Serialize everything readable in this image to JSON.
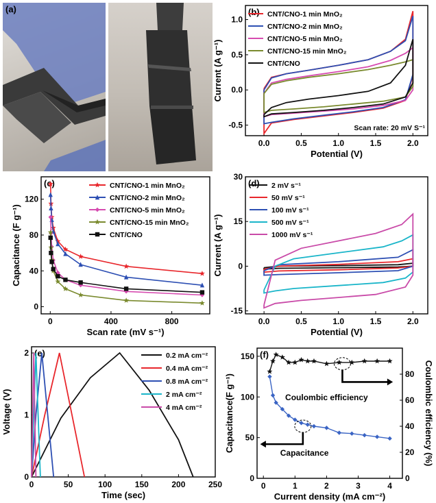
{
  "panel_a": {
    "label": "(a)"
  },
  "chart_data": [
    {
      "id": "b",
      "panel_label": "(b)",
      "type": "line",
      "xlabel": "Potential (V)",
      "ylabel": "Current (A g⁻¹)",
      "xlim": [
        -0.25,
        2.2
      ],
      "ylim": [
        -0.65,
        1.2
      ],
      "xticks": [
        0.0,
        0.5,
        1.0,
        1.5,
        2.0
      ],
      "yticks": [
        -0.5,
        0.0,
        0.5,
        1.0
      ],
      "xtick_labels": [
        "0.0",
        "0.5",
        "1.0",
        "1.5",
        "2.0"
      ],
      "ytick_labels": [
        "-0.5",
        "0.0",
        "0.5",
        "1.0"
      ],
      "annotation": "Scan rate: 20 mV S⁻¹",
      "legend_position": "top-left",
      "series": [
        {
          "name": "CNT/CNO-1 min MnO₂",
          "color": "#e8262b",
          "upper": [
            [
              0,
              0.02
            ],
            [
              0.1,
              0.18
            ],
            [
              0.3,
              0.23
            ],
            [
              0.6,
              0.28
            ],
            [
              1.0,
              0.35
            ],
            [
              1.4,
              0.43
            ],
            [
              1.7,
              0.55
            ],
            [
              1.9,
              0.72
            ],
            [
              2.0,
              1.12
            ]
          ],
          "lower": [
            [
              2.0,
              0.2
            ],
            [
              1.9,
              -0.15
            ],
            [
              1.6,
              -0.26
            ],
            [
              1.2,
              -0.32
            ],
            [
              0.8,
              -0.37
            ],
            [
              0.4,
              -0.42
            ],
            [
              0.1,
              -0.47
            ],
            [
              0.0,
              -0.62
            ]
          ]
        },
        {
          "name": "CNT/CNO-2 min MnO₂",
          "color": "#2d4fb3",
          "upper": [
            [
              0,
              0.0
            ],
            [
              0.1,
              0.17
            ],
            [
              0.3,
              0.23
            ],
            [
              0.6,
              0.28
            ],
            [
              1.0,
              0.35
            ],
            [
              1.4,
              0.43
            ],
            [
              1.7,
              0.55
            ],
            [
              1.9,
              0.7
            ],
            [
              2.0,
              1.05
            ]
          ],
          "lower": [
            [
              2.0,
              0.22
            ],
            [
              1.9,
              -0.14
            ],
            [
              1.6,
              -0.25
            ],
            [
              1.2,
              -0.31
            ],
            [
              0.8,
              -0.36
            ],
            [
              0.4,
              -0.41
            ],
            [
              0.1,
              -0.46
            ],
            [
              0.0,
              -0.48
            ]
          ]
        },
        {
          "name": "CNT/CNO-5 min MnO₂",
          "color": "#d64bb0",
          "upper": [
            [
              0,
              -0.05
            ],
            [
              0.1,
              0.1
            ],
            [
              0.3,
              0.15
            ],
            [
              0.6,
              0.2
            ],
            [
              1.0,
              0.26
            ],
            [
              1.4,
              0.33
            ],
            [
              1.7,
              0.42
            ],
            [
              1.9,
              0.52
            ],
            [
              2.0,
              0.6
            ]
          ],
          "lower": [
            [
              2.0,
              0.0
            ],
            [
              1.9,
              -0.15
            ],
            [
              1.6,
              -0.22
            ],
            [
              1.2,
              -0.27
            ],
            [
              0.8,
              -0.3
            ],
            [
              0.4,
              -0.33
            ],
            [
              0.1,
              -0.35
            ],
            [
              0.0,
              -0.38
            ]
          ]
        },
        {
          "name": "CNT/CNO-15 min MnO₂",
          "color": "#7a8a2e",
          "upper": [
            [
              0,
              -0.05
            ],
            [
              0.1,
              0.08
            ],
            [
              0.3,
              0.13
            ],
            [
              0.6,
              0.18
            ],
            [
              1.0,
              0.23
            ],
            [
              1.4,
              0.29
            ],
            [
              1.7,
              0.35
            ],
            [
              1.9,
              0.4
            ],
            [
              2.0,
              0.43
            ]
          ],
          "lower": [
            [
              2.0,
              0.05
            ],
            [
              1.9,
              -0.1
            ],
            [
              1.6,
              -0.16
            ],
            [
              1.2,
              -0.2
            ],
            [
              0.8,
              -0.24
            ],
            [
              0.4,
              -0.27
            ],
            [
              0.1,
              -0.29
            ],
            [
              0.0,
              -0.32
            ]
          ]
        },
        {
          "name": "CNT/CNO",
          "color": "#111111",
          "upper": [
            [
              0,
              -0.35
            ],
            [
              0.1,
              -0.25
            ],
            [
              0.3,
              -0.18
            ],
            [
              0.6,
              -0.13
            ],
            [
              1.0,
              -0.08
            ],
            [
              1.4,
              -0.02
            ],
            [
              1.7,
              0.1
            ],
            [
              1.9,
              0.35
            ],
            [
              2.0,
              0.72
            ]
          ],
          "lower": [
            [
              2.0,
              0.1
            ],
            [
              1.9,
              -0.1
            ],
            [
              1.6,
              -0.2
            ],
            [
              1.2,
              -0.25
            ],
            [
              0.8,
              -0.29
            ],
            [
              0.4,
              -0.32
            ],
            [
              0.1,
              -0.34
            ],
            [
              0.0,
              -0.38
            ]
          ]
        }
      ]
    },
    {
      "id": "c",
      "panel_label": "(c)",
      "type": "line",
      "xlabel": "Scan rate (mV s⁻¹)",
      "ylabel": "Capacitance (F g⁻¹)",
      "xlim": [
        -60,
        1050
      ],
      "ylim": [
        -8,
        145
      ],
      "xticks": [
        0,
        400,
        800
      ],
      "yticks": [
        0,
        40,
        80,
        120
      ],
      "xtick_labels": [
        "0",
        "400",
        "800"
      ],
      "ytick_labels": [
        "0",
        "40",
        "80",
        "120"
      ],
      "legend_position": "top-right",
      "x": [
        2,
        5,
        10,
        20,
        50,
        100,
        200,
        500,
        1000
      ],
      "series": [
        {
          "name": "CNT/CNO-1 min MnO₂",
          "color": "#e8262b",
          "marker": "star",
          "values": [
            137,
            115,
            100,
            88,
            73,
            64,
            56,
            45,
            37
          ]
        },
        {
          "name": "CNT/CNO-2 min MnO₂",
          "color": "#2d4fb3",
          "marker": "triangle",
          "values": [
            125,
            110,
            97,
            84,
            70,
            59,
            47,
            33,
            24
          ]
        },
        {
          "name": "CNT/CNO-5 min MnO₂",
          "color": "#d64bb0",
          "marker": "diamond",
          "values": [
            100,
            82,
            67,
            52,
            38,
            30,
            24,
            17,
            13
          ]
        },
        {
          "name": "CNT/CNO-15 min MnO₂",
          "color": "#7a8a2e",
          "marker": "star",
          "values": [
            83,
            66,
            52,
            40,
            28,
            20,
            13,
            7,
            4
          ]
        },
        {
          "name": "CNT/CNO",
          "color": "#111111",
          "marker": "square",
          "values": [
            77,
            60,
            50,
            42,
            34,
            30,
            27,
            20,
            16
          ]
        }
      ]
    },
    {
      "id": "d",
      "panel_label": "(d)",
      "type": "line",
      "xlabel": "Potential (V)",
      "ylabel": "Current (A g⁻¹)",
      "xlim": [
        -0.25,
        2.2
      ],
      "ylim": [
        -16,
        30
      ],
      "xticks": [
        0.0,
        0.5,
        1.0,
        1.5,
        2.0
      ],
      "yticks": [
        -15,
        0,
        15,
        30
      ],
      "xtick_labels": [
        "0.0",
        "0.5",
        "1.0",
        "1.5",
        "2.0"
      ],
      "ytick_labels": [
        "-15",
        "0",
        "15",
        "30"
      ],
      "legend_position": "top-left",
      "series": [
        {
          "name": "2 mV s⁻¹",
          "color": "#111111",
          "upper": [
            [
              0,
              -0.5
            ],
            [
              0.2,
              0.0
            ],
            [
              1.0,
              0.2
            ],
            [
              1.8,
              0.5
            ],
            [
              2.0,
              1.0
            ]
          ],
          "lower": [
            [
              2.0,
              0.0
            ],
            [
              1.8,
              -0.3
            ],
            [
              1.0,
              -0.5
            ],
            [
              0.2,
              -0.7
            ],
            [
              0.0,
              -1.0
            ]
          ]
        },
        {
          "name": "50 mV s⁻¹",
          "color": "#e8262b",
          "upper": [
            [
              0,
              -1.0
            ],
            [
              0.2,
              0.0
            ],
            [
              1.0,
              0.6
            ],
            [
              1.8,
              1.5
            ],
            [
              2.0,
              2.5
            ]
          ],
          "lower": [
            [
              2.0,
              0.0
            ],
            [
              1.8,
              -0.6
            ],
            [
              1.0,
              -1.2
            ],
            [
              0.2,
              -1.6
            ],
            [
              0.0,
              -2.0
            ]
          ]
        },
        {
          "name": "100 mV s⁻¹",
          "color": "#2d4fb3",
          "upper": [
            [
              0,
              -1.5
            ],
            [
              0.2,
              0.5
            ],
            [
              1.0,
              1.5
            ],
            [
              1.8,
              3.0
            ],
            [
              2.0,
              5.5
            ]
          ],
          "lower": [
            [
              2.0,
              0.0
            ],
            [
              1.8,
              -1.5
            ],
            [
              1.0,
              -2.2
            ],
            [
              0.2,
              -2.8
            ],
            [
              0.0,
              -3.0
            ]
          ]
        },
        {
          "name": "500 mV s⁻¹",
          "color": "#19b5c9",
          "upper": [
            [
              0,
              -8.0
            ],
            [
              0.15,
              0.0
            ],
            [
              0.4,
              2.5
            ],
            [
              1.0,
              4.5
            ],
            [
              1.6,
              6.5
            ],
            [
              1.85,
              8.5
            ],
            [
              2.0,
              10.5
            ]
          ],
          "lower": [
            [
              2.0,
              -2.0
            ],
            [
              1.9,
              -4.0
            ],
            [
              1.6,
              -5.5
            ],
            [
              1.0,
              -6.5
            ],
            [
              0.4,
              -7.5
            ],
            [
              0.15,
              -8.3
            ],
            [
              0.0,
              -9.0
            ]
          ]
        },
        {
          "name": "1000 mV s⁻¹",
          "color": "#c94aa8",
          "upper": [
            [
              0,
              -13.0
            ],
            [
              0.15,
              2.0
            ],
            [
              0.5,
              6.0
            ],
            [
              1.0,
              8.5
            ],
            [
              1.5,
              11.0
            ],
            [
              1.85,
              14.0
            ],
            [
              2.0,
              17.5
            ]
          ],
          "lower": [
            [
              2.0,
              -3.0
            ],
            [
              1.9,
              -7.0
            ],
            [
              1.5,
              -9.5
            ],
            [
              1.0,
              -10.5
            ],
            [
              0.5,
              -11.5
            ],
            [
              0.15,
              -12.5
            ],
            [
              0.0,
              -14.0
            ]
          ]
        }
      ]
    },
    {
      "id": "e",
      "panel_label": "(e)",
      "type": "line",
      "xlabel": "Time (sec)",
      "ylabel": "Voltage (V)",
      "xlim": [
        0,
        250
      ],
      "ylim": [
        0,
        2.1
      ],
      "xticks": [
        0,
        50,
        100,
        150,
        200,
        250
      ],
      "yticks": [
        0,
        1,
        2
      ],
      "xtick_labels": [
        "0",
        "50",
        "100",
        "150",
        "200",
        "250"
      ],
      "ytick_labels": [
        "0",
        "1",
        "2"
      ],
      "legend_position": "top-right",
      "series": [
        {
          "name": "0.2 mA cm⁻²",
          "color": "#111111",
          "x": [
            0,
            40,
            80,
            120,
            160,
            200,
            220
          ],
          "values": [
            0,
            0.95,
            1.6,
            2.0,
            1.4,
            0.6,
            0
          ]
        },
        {
          "name": "0.4 mA cm⁻²",
          "color": "#e8262b",
          "x": [
            0,
            18,
            38,
            55,
            72
          ],
          "values": [
            0,
            1.0,
            2.0,
            1.0,
            0
          ]
        },
        {
          "name": "0.8 mA cm⁻²",
          "color": "#2d4fb3",
          "x": [
            0,
            6,
            14,
            22,
            30
          ],
          "values": [
            0,
            1.0,
            2.0,
            1.0,
            0
          ]
        },
        {
          "name": "2 mA cm⁻²",
          "color": "#19b5c9",
          "x": [
            0,
            3,
            6,
            9,
            12
          ],
          "values": [
            0,
            1.0,
            2.0,
            1.0,
            0
          ]
        },
        {
          "name": "4 mA cm⁻²",
          "color": "#c94aa8",
          "x": [
            0,
            1.5,
            3,
            4.5,
            6
          ],
          "values": [
            0,
            1.0,
            2.0,
            1.0,
            0
          ]
        }
      ]
    },
    {
      "id": "f",
      "panel_label": "(f)",
      "type": "line",
      "xlabel": "Current density (mA cm⁻²)",
      "ylabel": "Capacitance(F g⁻¹)",
      "ylabel_right": "Coulombic efficiency (%)",
      "xlim": [
        -0.2,
        4.4
      ],
      "ylim": [
        0,
        160
      ],
      "ylim_right": [
        0,
        100
      ],
      "xticks": [
        0,
        1,
        2,
        3,
        4
      ],
      "yticks": [
        0,
        50,
        100,
        150
      ],
      "yticks_right": [
        0,
        20,
        40,
        60,
        80
      ],
      "xtick_labels": [
        "0",
        "1",
        "2",
        "3",
        "4"
      ],
      "ytick_labels": [
        "0",
        "50",
        "100",
        "150"
      ],
      "ytick_labels_right": [
        "0",
        "20",
        "40",
        "60",
        "80"
      ],
      "annotations": [
        "Coulombic efficiency",
        "Capacitance"
      ],
      "x": [
        0.2,
        0.3,
        0.4,
        0.6,
        0.8,
        1.0,
        1.2,
        1.4,
        1.6,
        2.0,
        2.4,
        2.8,
        3.2,
        3.6,
        4.0
      ],
      "series": [
        {
          "name": "Capacitance",
          "axis": "left",
          "color": "#3a64c4",
          "marker": "diamond",
          "values": [
            125,
            102,
            93,
            85,
            77,
            72,
            68,
            66,
            64,
            62,
            56,
            55,
            53,
            51,
            49
          ]
        },
        {
          "name": "Coulombic efficiency",
          "axis": "right",
          "color": "#111111",
          "marker": "star",
          "values": [
            82,
            90,
            95,
            93,
            89,
            89,
            91,
            90,
            90,
            88,
            89,
            89,
            90,
            90,
            90
          ]
        }
      ]
    }
  ]
}
